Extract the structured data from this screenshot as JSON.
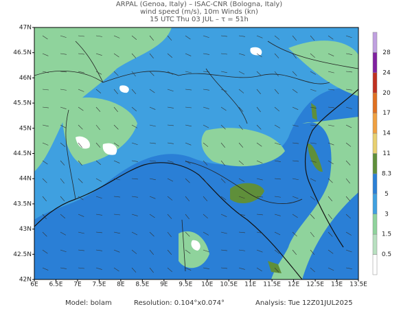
{
  "header": {
    "line1": "ARPAL (Genoa, Italy)  –  ISAC-CNR (Bologna, Italy)",
    "line2": "wind speed (m/s), 10m Winds (kn)",
    "line3": "15 UTC Thu 03 JUL  –  τ = 51h"
  },
  "map": {
    "xlim": [
      6,
      13.5
    ],
    "ylim": [
      42,
      47
    ],
    "xticks": [
      {
        "value": 6,
        "label": "6E"
      },
      {
        "value": 6.5,
        "label": "6.5E"
      },
      {
        "value": 7,
        "label": "7E"
      },
      {
        "value": 7.5,
        "label": "7.5E"
      },
      {
        "value": 8,
        "label": "8E"
      },
      {
        "value": 8.5,
        "label": "8.5E"
      },
      {
        "value": 9,
        "label": "9E"
      },
      {
        "value": 9.5,
        "label": "9.5E"
      },
      {
        "value": 10,
        "label": "10E"
      },
      {
        "value": 10.5,
        "label": "10.5E"
      },
      {
        "value": 11,
        "label": "11E"
      },
      {
        "value": 11.5,
        "label": "11.5E"
      },
      {
        "value": 12,
        "label": "12E"
      },
      {
        "value": 12.5,
        "label": "12.5E"
      },
      {
        "value": 13,
        "label": "13E"
      },
      {
        "value": 13.5,
        "label": "13.5E"
      }
    ],
    "yticks": [
      {
        "value": 42,
        "label": "42N"
      },
      {
        "value": 42.5,
        "label": "42.5N"
      },
      {
        "value": 43,
        "label": "43N"
      },
      {
        "value": 43.5,
        "label": "43.5N"
      },
      {
        "value": 44,
        "label": "44N"
      },
      {
        "value": 44.5,
        "label": "44.5N"
      },
      {
        "value": 45,
        "label": "45N"
      },
      {
        "value": 45.5,
        "label": "45.5N"
      },
      {
        "value": 46,
        "label": "46N"
      },
      {
        "value": 46.5,
        "label": "46.5N"
      },
      {
        "value": 47,
        "label": "47N"
      }
    ]
  },
  "colorbar": {
    "levels": [
      0.5,
      1.5,
      3,
      5,
      8.3,
      11,
      14,
      17,
      20,
      24,
      28
    ],
    "colors": [
      "#ffffff",
      "#b8e0c0",
      "#8fd39c",
      "#3fa0e0",
      "#2a7fd6",
      "#5f8f3a",
      "#e8d070",
      "#f0a040",
      "#e07020",
      "#c03020",
      "#8020a0",
      "#c0a0e0"
    ]
  },
  "footer": {
    "model": "Model: bolam",
    "resolution": "Resolution: 0.104°x0.074°",
    "analysis": "Analysis: Tue 12Z01JUL2025"
  }
}
